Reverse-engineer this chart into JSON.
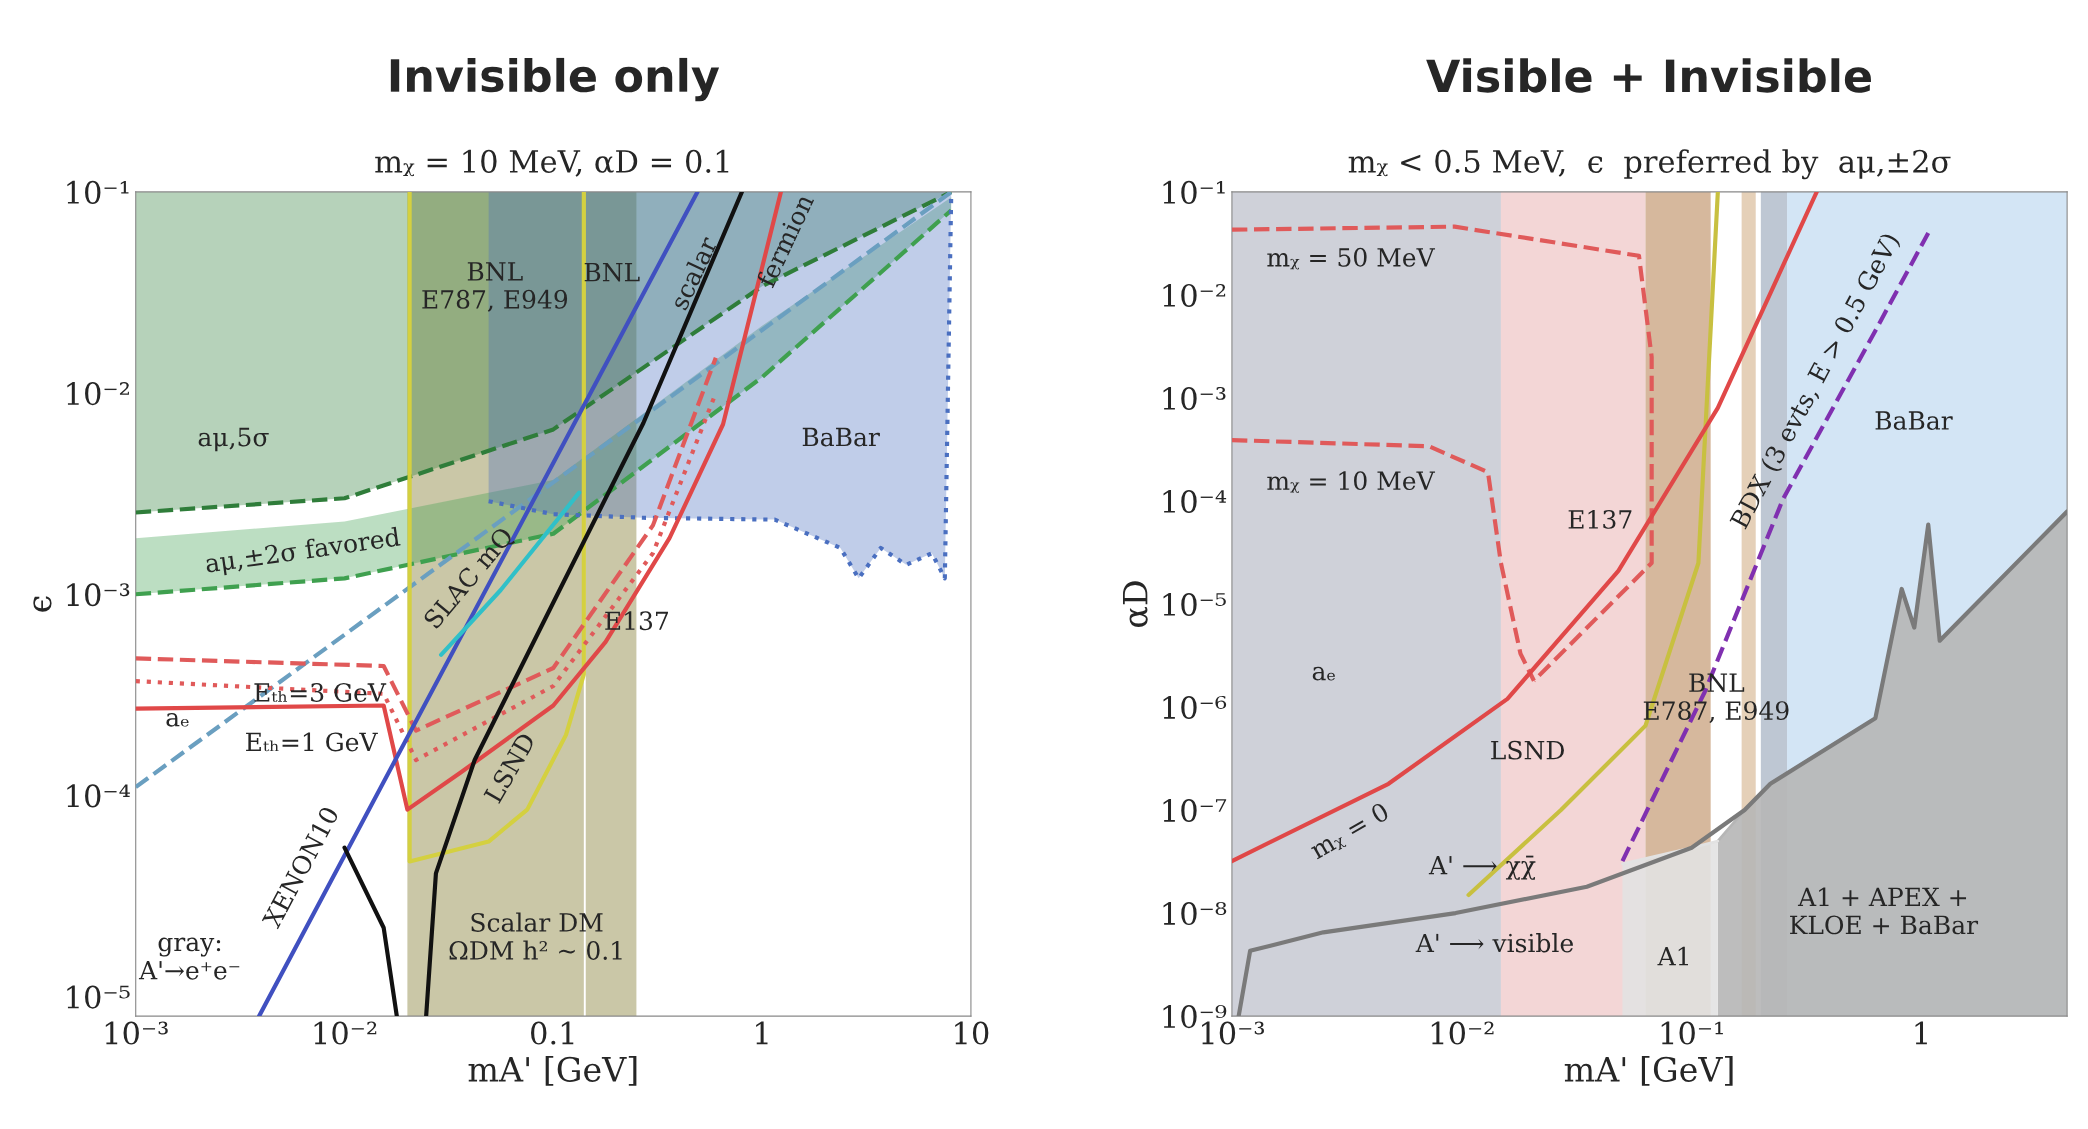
{
  "chart_data": [
    {
      "type": "line",
      "title": "Invisible only",
      "subtitle": "mᵪ = 10 MeV, αD = 0.1",
      "xlabel": "mA' [GeV]",
      "ylabel": "ϵ",
      "log": "xy",
      "grid": false,
      "marker": "none",
      "xlim": [
        0.001,
        10
      ],
      "xticks": [
        {
          "value": 0.001,
          "label": "10⁻³"
        },
        {
          "value": 0.01,
          "label": "10⁻²"
        },
        0.1,
        1,
        10
      ],
      "ylim": [
        8e-06,
        0.1
      ],
      "yticks": [
        {
          "value": 1e-05,
          "label": "10⁻⁵"
        },
        {
          "value": 0.0001,
          "label": "10⁻⁴"
        },
        {
          "value": 0.001,
          "label": "10⁻³"
        },
        {
          "value": 0.01,
          "label": "10⁻²"
        },
        {
          "value": 0.1,
          "label": "10⁻¹"
        }
      ],
      "bands": [
        {
          "axis": "x",
          "from": 0.02,
          "to": 0.14,
          "color": "#b8b48a"
        },
        {
          "axis": "x",
          "from": 0.143,
          "to": 0.25,
          "color": "#b8b48a"
        }
      ],
      "series": [
        {
          "color": "#2f7d3a",
          "line_style": "dashed",
          "x": [
            0.001,
            0.01,
            0.1,
            1,
            8.05
          ],
          "values": [
            0.00255,
            0.003,
            0.0066,
            0.034,
            0.1
          ],
          "lower": [
            0.00255,
            0.003,
            0.0066,
            0.034,
            0.1
          ],
          "upper": [
            0.1,
            0.1,
            0.1,
            0.1,
            0.1
          ]
        },
        {
          "color": "#3fa04f",
          "line_style": "dashed",
          "x": [
            0.001,
            0.01,
            0.1,
            1,
            8.05
          ],
          "values": [
            0.001,
            0.0012,
            0.002,
            0.012,
            0.081
          ],
          "lower": [
            0.001,
            0.0012,
            0.002,
            0.012,
            0.081
          ],
          "upper": [
            0.0019,
            0.0023,
            0.0037,
            0.0216,
            0.094
          ]
        },
        {
          "color": "#6a9fc0",
          "line_style": "dashed",
          "x": [
            0.001,
            8.05
          ],
          "values": [
            0.00011,
            0.1
          ]
        },
        {
          "color": "#4a6fc0",
          "line_style": "dotted",
          "x": [
            0.049,
            0.1,
            0.27,
            1.15,
            2.37,
            2.9,
            3.7,
            4.9,
            6.5,
            7.5,
            8.05
          ],
          "values": [
            0.0029,
            0.0025,
            0.0024,
            0.00235,
            0.0017,
            0.0012,
            0.0017,
            0.0014,
            0.0016,
            0.0012,
            0.1
          ],
          "lower": [
            0.0029,
            0.0025,
            0.0024,
            0.00235,
            0.0017,
            0.0012,
            0.0017,
            0.0014,
            0.0016,
            0.0012,
            0.1
          ],
          "upper": [
            0.1,
            0.1,
            0.1,
            0.1,
            0.1,
            0.1,
            0.1,
            0.1,
            0.1,
            0.1,
            0.1
          ]
        },
        {
          "color": "#d4d040",
          "line_style": "solid",
          "x": [
            0.0205,
            0.0205,
            0.049,
            0.075,
            0.115,
            0.14,
            0.14
          ],
          "values": [
            0.1,
            4.7e-05,
            5.9e-05,
            8.5e-05,
            0.0002,
            0.0004,
            0.1
          ]
        },
        {
          "color": "#e05a5a",
          "line_style": "dashed",
          "x": [
            0.001,
            0.0154,
            0.022,
            0.1,
            0.3,
            0.6
          ],
          "values": [
            0.00048,
            0.00044,
            0.00021,
            0.00043,
            0.0022,
            0.015
          ]
        },
        {
          "color": "#e05a5a",
          "line_style": "dotted",
          "x": [
            0.001,
            0.0154,
            0.022,
            0.1,
            0.3,
            0.6
          ],
          "values": [
            0.00037,
            0.00032,
            0.00015,
            0.00035,
            0.0016,
            0.01
          ]
        },
        {
          "color": "#e04848",
          "line_style": "solid",
          "x": [
            0.001,
            0.0154,
            0.02,
            0.036,
            0.1,
            0.178,
            0.36,
            0.65,
            1.23
          ],
          "values": [
            0.00027,
            0.00028,
            8.5e-05,
            0.00013,
            0.00028,
            0.00058,
            0.0019,
            0.007,
            0.1
          ]
        },
        {
          "color": "#4050c0",
          "line_style": "solid",
          "x": [
            0.0039,
            0.49
          ],
          "values": [
            8e-06,
            0.1
          ]
        },
        {
          "color": "#30c0c8",
          "line_style": "solid",
          "x": [
            0.029,
            0.056,
            0.133
          ],
          "values": [
            0.0005,
            0.00105,
            0.0032
          ]
        },
        {
          "color": "#111111",
          "line_style": "solid",
          "x": [
            0.0246,
            0.0274,
            0.042,
            0.1,
            0.27,
            0.8
          ],
          "values": [
            8e-06,
            4.1e-05,
            0.00015,
            0.00091,
            0.0071,
            0.1
          ]
        },
        {
          "color": "#111111",
          "line_style": "solid",
          "x": [
            0.01,
            0.0154,
            0.0178
          ],
          "values": [
            5.5e-05,
            2.2e-05,
            8e-06
          ]
        }
      ],
      "annotations": [
        "BNL\nE787, E949",
        "BNL",
        "aμ,5σ",
        "aμ,±2σ favored",
        "BaBar",
        "E137",
        "SLAC mQ",
        "Eₜₕ=3 GeV",
        "Eₜₕ=1 GeV",
        "aₑ",
        "LSND",
        "XENON10",
        "scalar",
        "fermion",
        "gray:\nA'→e⁺e⁻",
        "Scalar DM\nΩDM h² ~ 0.1"
      ]
    },
    {
      "type": "line",
      "title": "Visible + Invisible",
      "subtitle": "mᵪ < 0.5 MeV,  ϵ  preferred by  aμ,±2σ",
      "xlabel": "mA' [GeV]",
      "ylabel": "αD",
      "log": "xy",
      "grid": false,
      "marker": "none",
      "xlim": [
        0.001,
        4.3
      ],
      "xticks": [
        {
          "value": 0.001,
          "label": "10⁻³"
        },
        {
          "value": 0.01,
          "label": "10⁻²"
        },
        {
          "value": 0.1,
          "label": "10⁻¹"
        },
        1
      ],
      "ylim": [
        1e-09,
        0.1
      ],
      "yticks": [
        {
          "value": 1e-09,
          "label": "10⁻⁹"
        },
        {
          "value": 1e-08,
          "label": "10⁻⁸"
        },
        {
          "value": 1e-07,
          "label": "10⁻⁷"
        },
        {
          "value": 1e-06,
          "label": "10⁻⁶"
        },
        {
          "value": 1e-05,
          "label": "10⁻⁵"
        },
        {
          "value": 0.0001,
          "label": "10⁻⁴"
        },
        {
          "value": 0.001,
          "label": "10⁻³"
        },
        {
          "value": 0.01,
          "label": "10⁻²"
        },
        {
          "value": 0.1,
          "label": "10⁻¹"
        }
      ],
      "bands": [
        {
          "axis": "x",
          "from": 0.001,
          "to": 0.0148,
          "color": "#bfc2cc"
        },
        {
          "axis": "x",
          "from": 0.0148,
          "to": 0.063,
          "color": "#efc8c8"
        },
        {
          "axis": "x",
          "from": 0.063,
          "to": 0.121,
          "color": "#c8a07c"
        },
        {
          "axis": "x",
          "from": 0.165,
          "to": 0.19,
          "color": "#dcc0a0"
        },
        {
          "axis": "x",
          "from": 0.2,
          "to": 0.26,
          "color": "#a8b4c4"
        },
        {
          "axis": "x",
          "from": 0.26,
          "to": 4.3,
          "color": "#c4dcf2"
        }
      ],
      "series": [
        {
          "type": "area",
          "color": "#b6b6b6",
          "x": [
            0.13,
            0.17,
            0.22,
            0.63,
            0.82,
            0.93,
            1.07,
            1.2,
            4.3
          ],
          "values": [
            5e-08,
            1e-07,
            1.8e-07,
            7.8e-07,
            1.4e-05,
            5.9e-06,
            5.9e-05,
            4.4e-06,
            7.9e-05
          ]
        },
        {
          "type": "area",
          "color": "#e2e2e2",
          "x": [
            0.05,
            0.1,
            0.13
          ],
          "values": [
            3e-08,
            4.3e-08,
            5e-08
          ]
        },
        {
          "color": "#7a7a7a",
          "line_style": "solid",
          "x": [
            0.00107,
            0.0012,
            0.0025,
            0.0094,
            0.035,
            0.1,
            0.17,
            0.22,
            0.63,
            0.82,
            0.93,
            1.07,
            1.2,
            4.3
          ],
          "values": [
            1e-09,
            4.3e-09,
            6.5e-09,
            1e-08,
            1.8e-08,
            4.3e-08,
            1e-07,
            1.8e-07,
            7.8e-07,
            1.4e-05,
            5.9e-06,
            5.9e-05,
            4.4e-06,
            7.9e-05
          ]
        },
        {
          "color": "#e05a5a",
          "line_style": "dashed",
          "x": [
            0.001,
            0.0093,
            0.059,
            0.067,
            0.067,
            0.0206
          ],
          "values": [
            0.043,
            0.046,
            0.024,
            0.0025,
            2.5e-05,
            1.8e-06
          ]
        },
        {
          "color": "#e05a5a",
          "line_style": "dashed",
          "x": [
            0.001,
            0.0072,
            0.013,
            0.0148,
            0.018,
            0.0206
          ],
          "values": [
            0.00039,
            0.00034,
            0.00019,
            2.5e-05,
            3.3e-06,
            1.8e-06
          ]
        },
        {
          "color": "#c8c040",
          "line_style": "solid",
          "x": [
            0.0107,
            0.027,
            0.063,
            0.107,
            0.13
          ],
          "values": [
            1.5e-08,
            1e-07,
            6.6e-07,
            2.5e-05,
            0.1
          ]
        },
        {
          "color": "#8030b0",
          "line_style": "dashed",
          "x": [
            0.05,
            0.114,
            0.25,
            0.63,
            1.07
          ],
          "values": [
            3.2e-08,
            1.4e-06,
            0.000105,
            0.0045,
            0.04
          ]
        },
        {
          "color": "#e04848",
          "line_style": "solid",
          "x": [
            0.001,
            0.0048,
            0.0158,
            0.048,
            0.13,
            0.35
          ],
          "values": [
            3.2e-08,
            1.8e-07,
            1.2e-06,
            2.1e-05,
            0.0008,
            0.1
          ]
        }
      ],
      "annotations": [
        "mᵪ = 50 MeV",
        "mᵪ = 10 MeV",
        "E137",
        "BaBar",
        "BDX (3 evts, E > 0.5 GeV)",
        "aₑ",
        "BNL\nE787, E949",
        "LSND",
        "mᵪ = 0",
        "A' ⟶ χχ̄",
        "A' ⟶ visible",
        "A1",
        "A1 + APEX +\nKLOE + BaBar"
      ]
    }
  ]
}
